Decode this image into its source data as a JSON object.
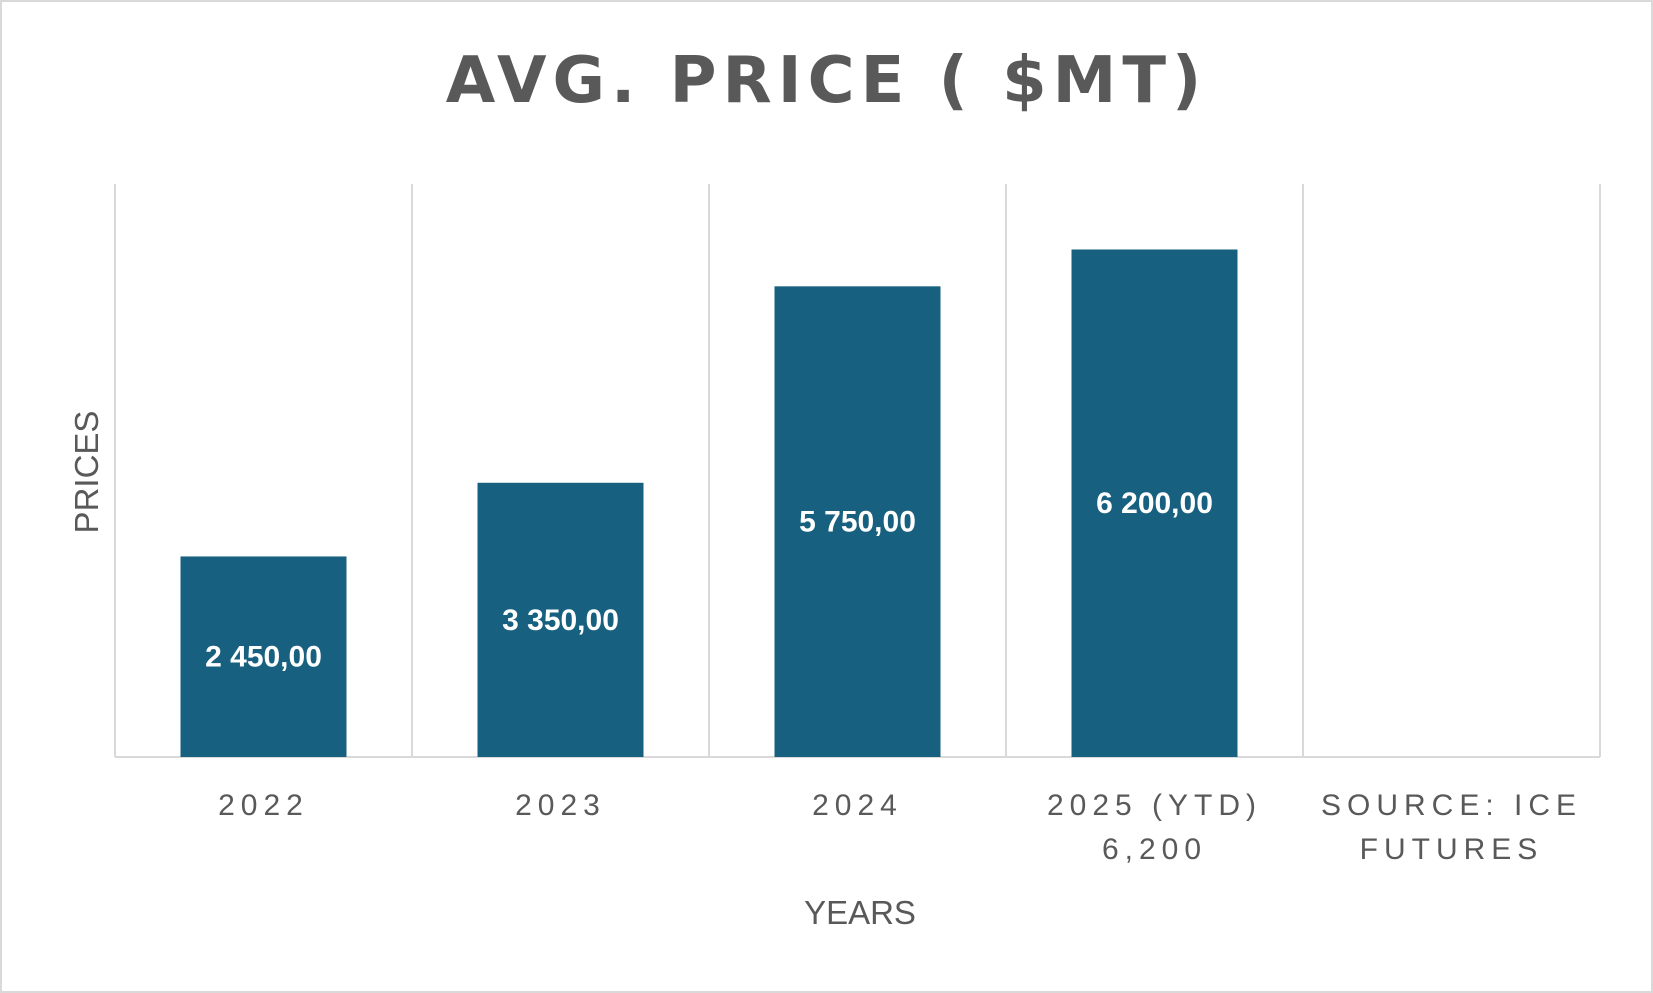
{
  "chart_data": {
    "type": "bar",
    "title": "AVG. PRICE ( $MT)",
    "xlabel": "YEARS",
    "ylabel": "PRICES",
    "categories": [
      [
        "2022"
      ],
      [
        "2023"
      ],
      [
        "2024"
      ],
      [
        "2025 (YTD)",
        "6,200"
      ],
      [
        "SOURCE: ICE",
        "FUTURES"
      ]
    ],
    "values": [
      2450,
      3350,
      5750,
      6200,
      null
    ],
    "data_labels": [
      "2 450,00",
      "3 350,00",
      "5 750,00",
      "6 200,00",
      ""
    ],
    "ylim": [
      0,
      7000
    ],
    "bar_color": "#17607f",
    "grid": "vertical",
    "legend": "none"
  }
}
